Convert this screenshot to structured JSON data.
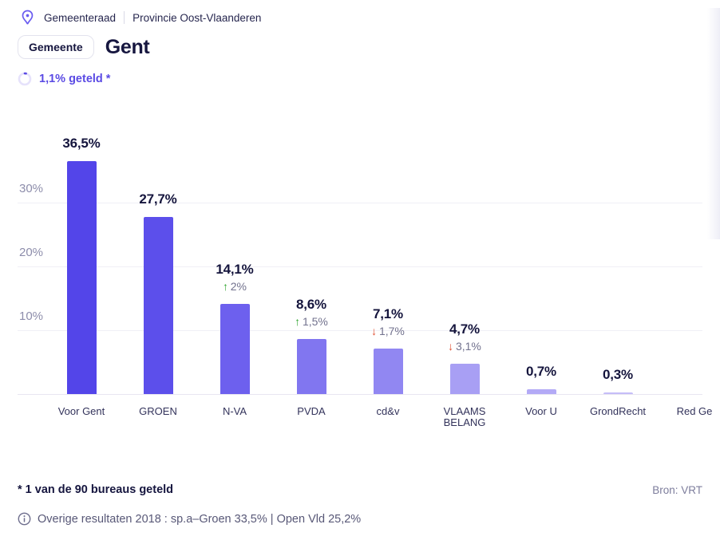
{
  "header": {
    "breadcrumb": {
      "level": "Gemeenteraad",
      "region": "Provincie Oost-Vlaanderen"
    },
    "badge": "Gemeente",
    "title": "Gent",
    "counted_label": "1,1% geteld *",
    "counted_pct": 1.1
  },
  "chart_data": {
    "type": "bar",
    "title": "",
    "xlabel": "",
    "ylabel": "",
    "ylim": [
      0,
      40
    ],
    "grid": true,
    "yticks": [
      {
        "value": 30,
        "label": "30%"
      },
      {
        "value": 20,
        "label": "20%"
      },
      {
        "value": 10,
        "label": "10%"
      }
    ],
    "categories": [
      "Voor Gent",
      "GROEN",
      "N-VA",
      "PVDA",
      "cd&v",
      "VLAAMS BELANG",
      "Voor U",
      "GrondRecht",
      "Red Ge"
    ],
    "values": [
      36.5,
      27.7,
      14.1,
      8.6,
      7.1,
      4.7,
      0.7,
      0.3,
      null
    ],
    "value_labels": [
      "36,5%",
      "27,7%",
      "14,1%",
      "8,6%",
      "7,1%",
      "4,7%",
      "0,7%",
      "0,3%",
      ""
    ],
    "changes": [
      null,
      null,
      {
        "direction": "up",
        "label": "2%"
      },
      {
        "direction": "up",
        "label": "1,5%"
      },
      {
        "direction": "down",
        "label": "1,7%"
      },
      {
        "direction": "down",
        "label": "3,1%"
      },
      null,
      null,
      null
    ],
    "bar_colors": [
      "#5345e9",
      "#5c4feb",
      "#6d60ee",
      "#8176f0",
      "#9187f2",
      "#a89ff4",
      "#b3aaf6",
      "#c5bdf8",
      "#d2ccfa"
    ]
  },
  "icons": {
    "location_pin": "location-pin-icon",
    "progress_ring": "progress-ring-icon",
    "info": "info-icon",
    "arrow_up": "↑",
    "arrow_down": "↓"
  },
  "colors": {
    "accent_purple": "#5a4ae4",
    "up_green": "#30a52f",
    "down_red": "#e05134"
  },
  "footer": {
    "note": "* 1 van de 90 bureaus geteld",
    "source": "Bron: VRT",
    "info": "Overige resultaten 2018 : sp.a–Groen 33,5% | Open Vld 25,2%"
  }
}
